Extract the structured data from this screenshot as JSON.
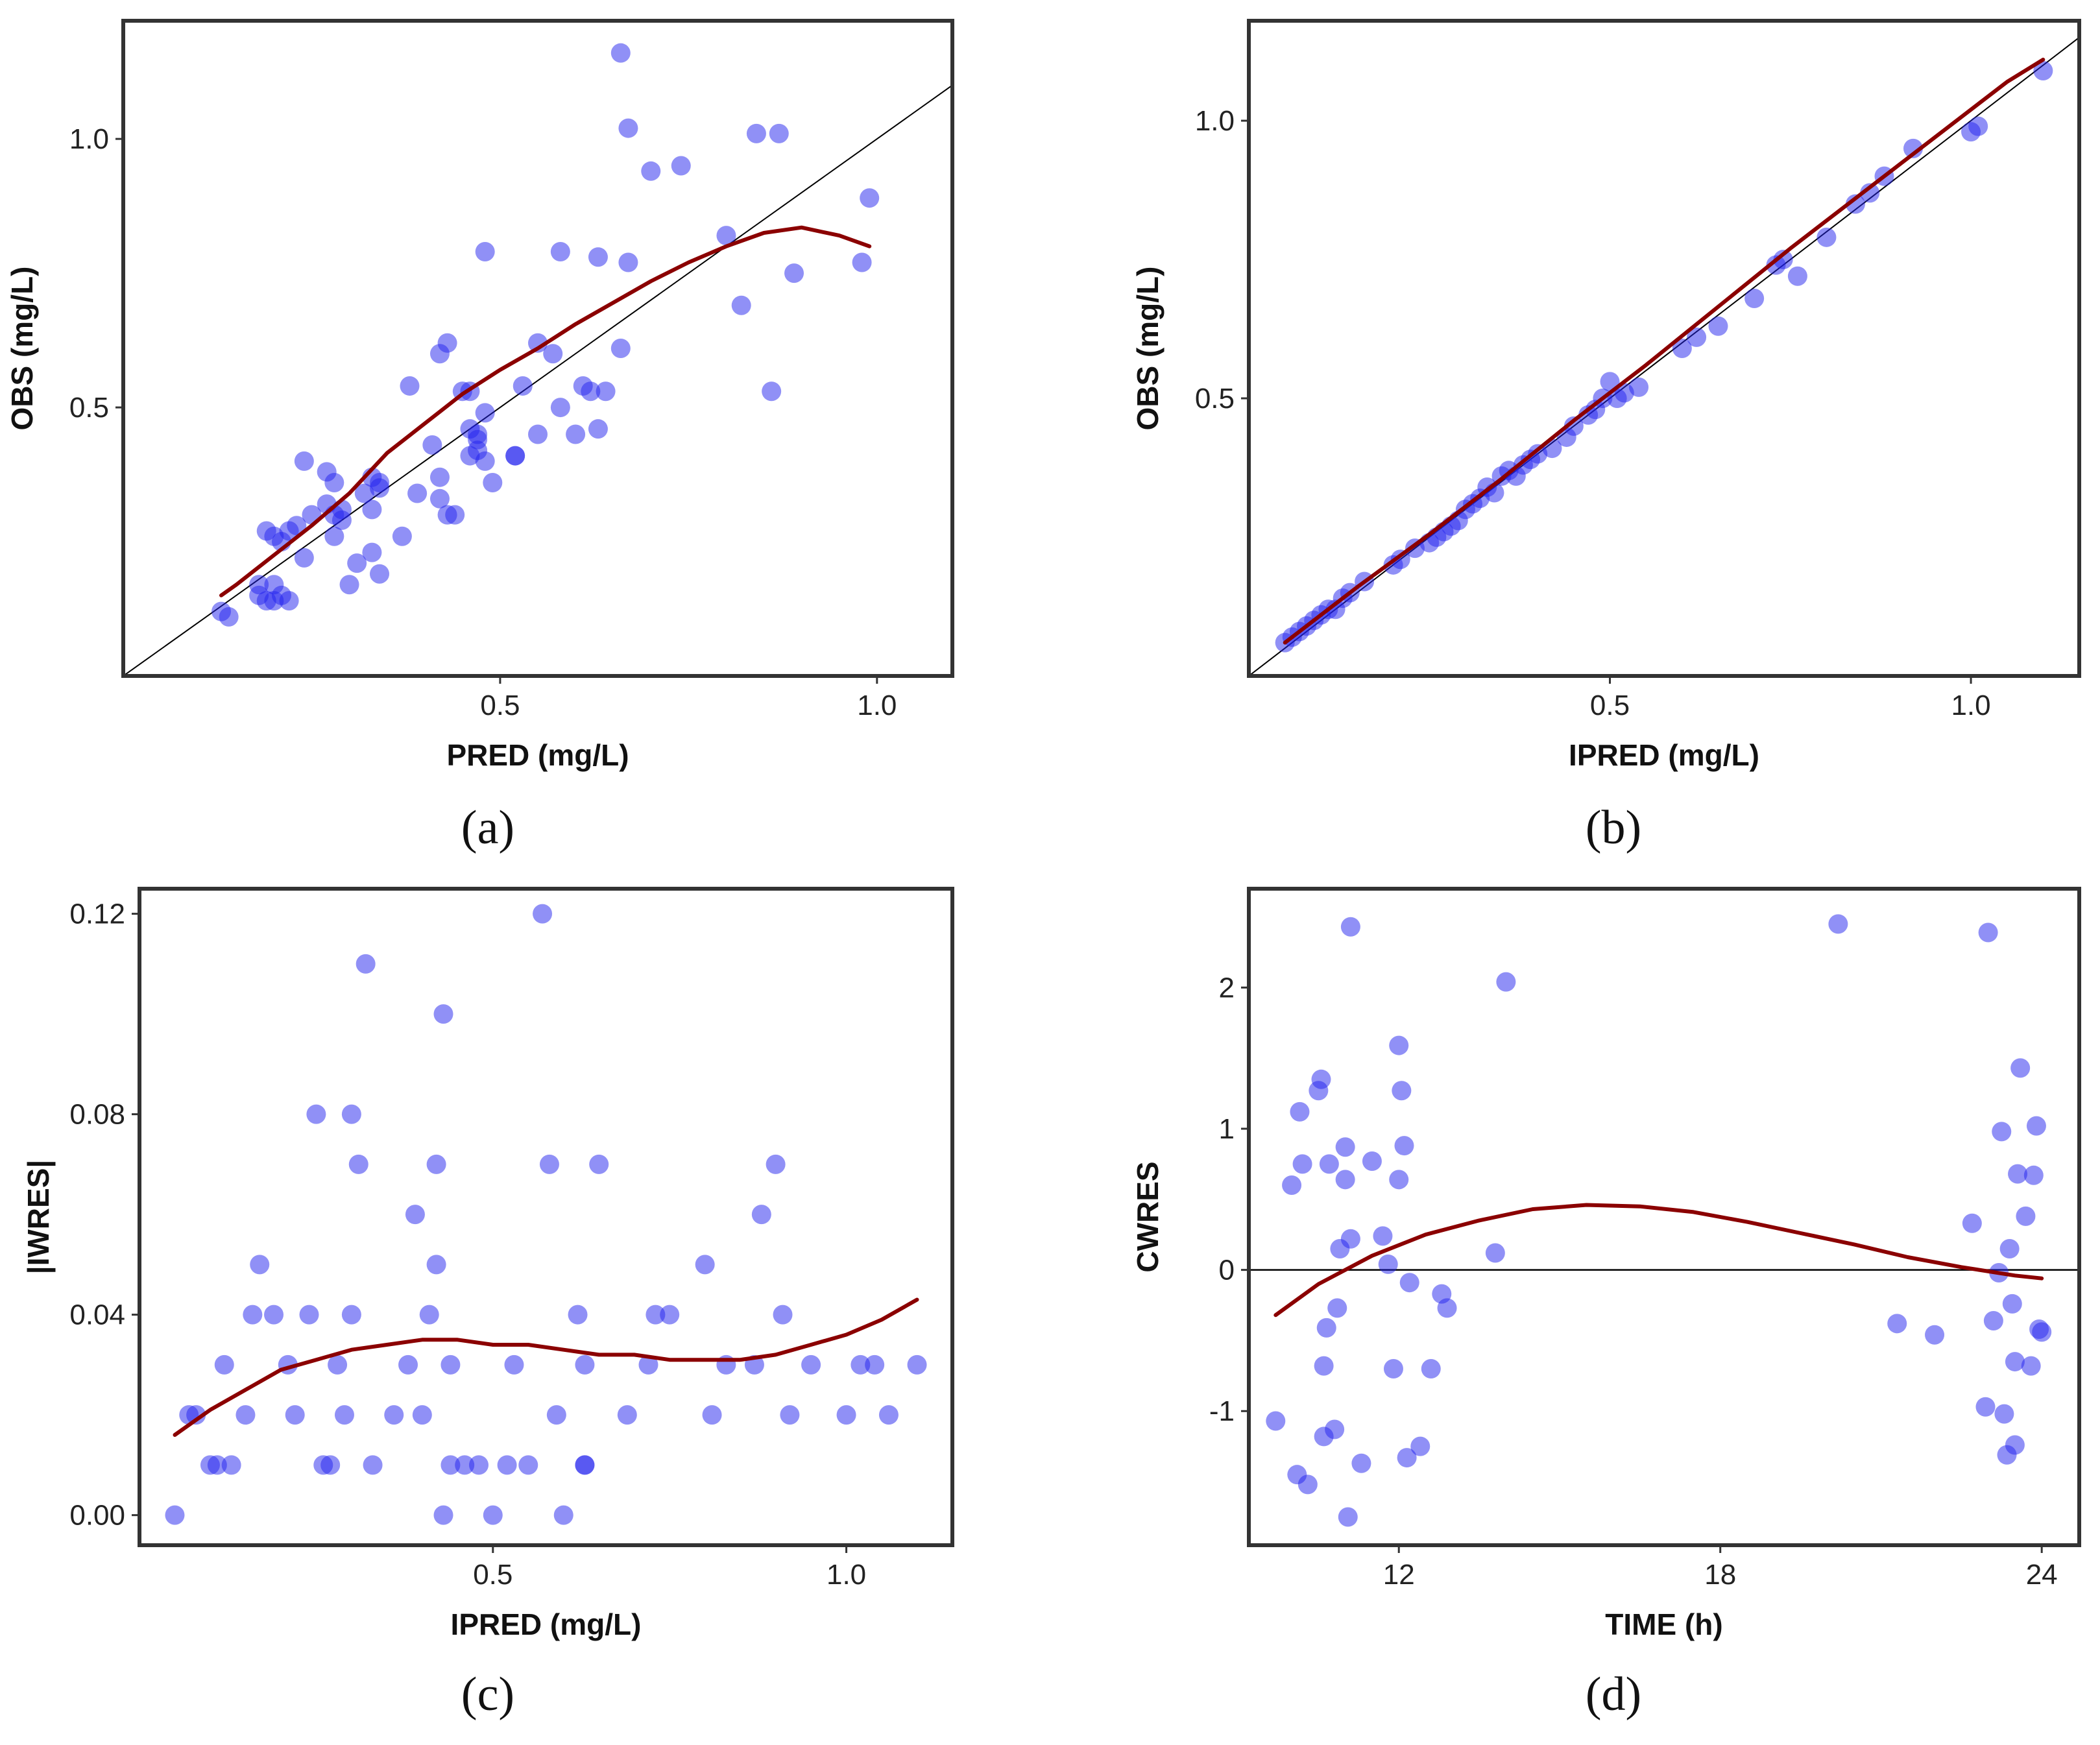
{
  "colors": {
    "point": "#2222ee",
    "smooth": "#8b0000",
    "reference": "#000000",
    "frame": "#333333"
  },
  "chart_data": [
    {
      "id": "a",
      "type": "scatter",
      "caption": "(a)",
      "xlabel": "PRED (mg/L)",
      "ylabel": "OBS (mg/L)",
      "xlim": [
        0.0,
        1.1
      ],
      "ylim": [
        0.0,
        1.22
      ],
      "xticks": [
        0.5,
        1.0
      ],
      "xtick_labels": [
        "0.5",
        "1.0"
      ],
      "yticks": [
        0.5,
        1.0
      ],
      "ytick_labels": [
        "0.5",
        "1.0"
      ],
      "reference": {
        "kind": "identity"
      },
      "x": [
        0.13,
        0.14,
        0.18,
        0.19,
        0.2,
        0.18,
        0.2,
        0.21,
        0.22,
        0.19,
        0.21,
        0.23,
        0.2,
        0.22,
        0.24,
        0.24,
        0.25,
        0.27,
        0.28,
        0.28,
        0.29,
        0.28,
        0.27,
        0.3,
        0.31,
        0.29,
        0.32,
        0.33,
        0.33,
        0.34,
        0.34,
        0.34,
        0.33,
        0.37,
        0.38,
        0.39,
        0.41,
        0.42,
        0.43,
        0.44,
        0.47,
        0.46,
        0.47,
        0.48,
        0.48,
        0.42,
        0.42,
        0.43,
        0.45,
        0.46,
        0.47,
        0.46,
        0.48,
        0.49,
        0.52,
        0.52,
        0.53,
        0.55,
        0.55,
        0.57,
        0.58,
        0.58,
        0.6,
        0.61,
        0.63,
        0.63,
        0.64,
        0.62,
        0.66,
        0.66,
        0.67,
        0.67,
        0.7,
        0.74,
        0.84,
        0.86,
        0.87,
        0.89,
        0.8,
        0.82,
        0.98,
        0.99
      ],
      "y": [
        0.12,
        0.11,
        0.15,
        0.14,
        0.14,
        0.17,
        0.17,
        0.15,
        0.14,
        0.27,
        0.25,
        0.28,
        0.26,
        0.27,
        0.4,
        0.22,
        0.3,
        0.38,
        0.36,
        0.26,
        0.29,
        0.3,
        0.32,
        0.17,
        0.21,
        0.31,
        0.34,
        0.37,
        0.23,
        0.19,
        0.35,
        0.36,
        0.31,
        0.26,
        0.54,
        0.34,
        0.43,
        0.33,
        0.3,
        0.3,
        0.42,
        0.41,
        0.44,
        0.49,
        0.4,
        0.37,
        0.6,
        0.62,
        0.53,
        0.53,
        0.45,
        0.46,
        0.79,
        0.36,
        0.41,
        0.41,
        0.54,
        0.45,
        0.62,
        0.6,
        0.79,
        0.5,
        0.45,
        0.54,
        0.46,
        0.78,
        0.53,
        0.53,
        1.16,
        0.61,
        0.77,
        1.02,
        0.94,
        0.95,
        1.01,
        0.53,
        1.01,
        0.75,
        0.82,
        0.69,
        0.77,
        0.89
      ],
      "smooth": {
        "x": [
          0.13,
          0.15,
          0.2,
          0.25,
          0.3,
          0.35,
          0.4,
          0.45,
          0.5,
          0.55,
          0.6,
          0.65,
          0.7,
          0.75,
          0.8,
          0.85,
          0.9,
          0.95,
          0.99
        ],
        "y": [
          0.15,
          0.17,
          0.225,
          0.28,
          0.34,
          0.415,
          0.47,
          0.525,
          0.57,
          0.61,
          0.655,
          0.695,
          0.735,
          0.77,
          0.8,
          0.825,
          0.835,
          0.82,
          0.8
        ]
      }
    },
    {
      "id": "b",
      "type": "scatter",
      "caption": "(b)",
      "xlabel": "IPRED (mg/L)",
      "ylabel": "OBS (mg/L)",
      "xlim": [
        0.0,
        1.15
      ],
      "ylim": [
        0.0,
        1.18
      ],
      "xticks": [
        0.5,
        1.0
      ],
      "xtick_labels": [
        "0.5",
        "1.0"
      ],
      "yticks": [
        0.5,
        1.0
      ],
      "ytick_labels": [
        "0.5",
        "1.0"
      ],
      "reference": {
        "kind": "identity"
      },
      "x": [
        0.05,
        0.06,
        0.07,
        0.08,
        0.09,
        0.1,
        0.11,
        0.12,
        0.13,
        0.14,
        0.16,
        0.2,
        0.21,
        0.23,
        0.25,
        0.26,
        0.27,
        0.28,
        0.29,
        0.3,
        0.31,
        0.32,
        0.33,
        0.34,
        0.35,
        0.36,
        0.37,
        0.38,
        0.39,
        0.4,
        0.42,
        0.44,
        0.45,
        0.47,
        0.48,
        0.49,
        0.5,
        0.51,
        0.52,
        0.54,
        0.6,
        0.62,
        0.65,
        0.7,
        0.73,
        0.74,
        0.76,
        0.8,
        0.84,
        0.86,
        0.88,
        0.92,
        1.0,
        1.01,
        1.1
      ],
      "y": [
        0.06,
        0.07,
        0.08,
        0.09,
        0.1,
        0.11,
        0.12,
        0.12,
        0.14,
        0.15,
        0.17,
        0.2,
        0.21,
        0.23,
        0.24,
        0.25,
        0.26,
        0.27,
        0.28,
        0.3,
        0.31,
        0.32,
        0.34,
        0.33,
        0.36,
        0.37,
        0.36,
        0.38,
        0.39,
        0.4,
        0.41,
        0.43,
        0.45,
        0.47,
        0.48,
        0.5,
        0.53,
        0.5,
        0.51,
        0.52,
        0.59,
        0.61,
        0.63,
        0.68,
        0.74,
        0.75,
        0.72,
        0.79,
        0.85,
        0.87,
        0.9,
        0.95,
        0.98,
        0.99,
        1.09
      ],
      "smooth": {
        "x": [
          0.05,
          0.15,
          0.25,
          0.35,
          0.45,
          0.55,
          0.65,
          0.75,
          0.85,
          0.95,
          1.05,
          1.1
        ],
        "y": [
          0.06,
          0.16,
          0.255,
          0.355,
          0.46,
          0.56,
          0.665,
          0.77,
          0.87,
          0.97,
          1.07,
          1.11
        ]
      }
    },
    {
      "id": "c",
      "type": "scatter",
      "caption": "(c)",
      "xlabel": "IPRED (mg/L)",
      "ylabel": "|IWRES|",
      "xlim": [
        0.0,
        1.15
      ],
      "ylim": [
        -0.006,
        0.125
      ],
      "xticks": [
        0.5,
        1.0
      ],
      "xtick_labels": [
        "0.5",
        "1.0"
      ],
      "yticks": [
        0.0,
        0.04,
        0.08,
        0.12
      ],
      "ytick_labels": [
        "0.00",
        "0.04",
        "0.08",
        "0.12"
      ],
      "x": [
        0.05,
        0.07,
        0.08,
        0.1,
        0.11,
        0.12,
        0.13,
        0.15,
        0.16,
        0.17,
        0.19,
        0.21,
        0.22,
        0.24,
        0.25,
        0.26,
        0.27,
        0.28,
        0.29,
        0.3,
        0.3,
        0.31,
        0.32,
        0.33,
        0.36,
        0.38,
        0.39,
        0.4,
        0.41,
        0.42,
        0.42,
        0.43,
        0.43,
        0.44,
        0.44,
        0.46,
        0.48,
        0.5,
        0.52,
        0.53,
        0.55,
        0.57,
        0.58,
        0.59,
        0.6,
        0.62,
        0.63,
        0.63,
        0.63,
        0.65,
        0.69,
        0.72,
        0.73,
        0.75,
        0.8,
        0.81,
        0.83,
        0.87,
        0.88,
        0.91,
        0.9,
        0.92,
        0.95,
        1.0,
        1.02,
        1.04,
        1.06,
        1.1
      ],
      "y": [
        0.0,
        0.02,
        0.02,
        0.01,
        0.01,
        0.03,
        0.01,
        0.02,
        0.04,
        0.05,
        0.04,
        0.03,
        0.02,
        0.04,
        0.08,
        0.01,
        0.01,
        0.03,
        0.02,
        0.04,
        0.08,
        0.07,
        0.11,
        0.01,
        0.02,
        0.03,
        0.06,
        0.02,
        0.04,
        0.05,
        0.07,
        0.1,
        0.0,
        0.03,
        0.01,
        0.01,
        0.01,
        0.0,
        0.01,
        0.03,
        0.01,
        0.12,
        0.07,
        0.02,
        0.0,
        0.04,
        0.03,
        0.01,
        0.01,
        0.07,
        0.02,
        0.03,
        0.04,
        0.04,
        0.05,
        0.02,
        0.03,
        0.03,
        0.06,
        0.04,
        0.07,
        0.02,
        0.03,
        0.02,
        0.03,
        0.03,
        0.02,
        0.03
      ],
      "smooth": {
        "x": [
          0.05,
          0.1,
          0.15,
          0.2,
          0.25,
          0.3,
          0.35,
          0.4,
          0.45,
          0.5,
          0.55,
          0.6,
          0.65,
          0.7,
          0.75,
          0.8,
          0.85,
          0.9,
          0.95,
          1.0,
          1.05,
          1.1
        ],
        "y": [
          0.016,
          0.021,
          0.025,
          0.029,
          0.031,
          0.033,
          0.034,
          0.035,
          0.035,
          0.034,
          0.034,
          0.033,
          0.032,
          0.032,
          0.031,
          0.031,
          0.031,
          0.032,
          0.034,
          0.036,
          0.039,
          0.043
        ]
      }
    },
    {
      "id": "d",
      "type": "scatter",
      "caption": "(d)",
      "xlabel": "TIME (h)",
      "ylabel": "CWRES",
      "xlim": [
        9.2,
        24.7
      ],
      "ylim": [
        -1.95,
        2.7
      ],
      "xticks": [
        12,
        18,
        24
      ],
      "xtick_labels": [
        "12",
        "18",
        "24"
      ],
      "yticks": [
        -1,
        0,
        1,
        2
      ],
      "ytick_labels": [
        "-1",
        "0",
        "1",
        "2"
      ],
      "reference": {
        "kind": "hline",
        "y": 0
      },
      "x": [
        9.7,
        10.0,
        10.1,
        10.15,
        10.2,
        10.3,
        10.5,
        10.55,
        10.6,
        10.6,
        10.65,
        10.7,
        10.8,
        10.85,
        10.9,
        11.0,
        11.0,
        11.05,
        11.1,
        11.1,
        11.3,
        11.5,
        11.7,
        11.8,
        11.9,
        12.0,
        12.0,
        12.05,
        12.1,
        12.15,
        12.2,
        12.4,
        12.6,
        12.8,
        12.9,
        13.8,
        14.0,
        20.2,
        21.3,
        22.0,
        22.7,
        22.95,
        23.0,
        23.1,
        23.2,
        23.25,
        23.3,
        23.35,
        23.4,
        23.45,
        23.5,
        23.5,
        23.55,
        23.6,
        23.7,
        23.8,
        23.85,
        23.9,
        23.95,
        24.0
      ],
      "y": [
        -1.07,
        0.6,
        -1.45,
        1.12,
        0.75,
        -1.52,
        1.27,
        1.35,
        -0.68,
        -1.18,
        -0.41,
        0.75,
        -1.13,
        -0.27,
        0.15,
        0.87,
        0.64,
        -1.75,
        0.22,
        2.43,
        -1.37,
        0.77,
        0.24,
        0.04,
        -0.7,
        1.59,
        0.64,
        1.27,
        0.88,
        -1.33,
        -0.09,
        -1.25,
        -0.7,
        -0.17,
        -0.27,
        0.12,
        2.04,
        2.45,
        -0.38,
        -0.46,
        0.33,
        -0.97,
        2.39,
        -0.36,
        -0.02,
        0.98,
        -1.02,
        -1.31,
        0.15,
        -0.24,
        -0.65,
        -1.24,
        0.68,
        1.43,
        0.38,
        -0.68,
        0.67,
        1.02,
        -0.42,
        -0.44
      ],
      "smooth": {
        "x": [
          9.7,
          10.5,
          11.5,
          12.5,
          13.5,
          14.5,
          15.5,
          16.5,
          17.5,
          18.5,
          19.5,
          20.5,
          21.5,
          22.5,
          23.5,
          24.0
        ],
        "y": [
          -0.32,
          -0.1,
          0.1,
          0.25,
          0.35,
          0.43,
          0.46,
          0.45,
          0.41,
          0.34,
          0.26,
          0.18,
          0.09,
          0.02,
          -0.04,
          -0.06
        ]
      }
    }
  ]
}
